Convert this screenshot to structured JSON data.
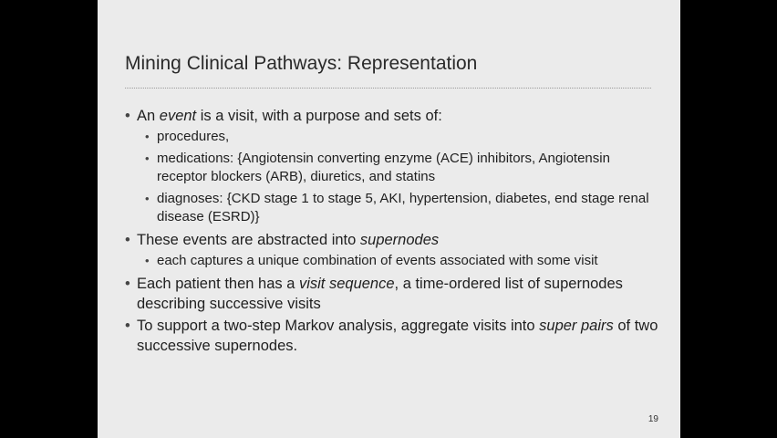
{
  "title": "Mining Clinical Pathways: Representation",
  "bullets": {
    "b1": {
      "pre": "An ",
      "em": "event",
      "post": " is a visit, with a purpose and sets of:",
      "subs": {
        "s1": "procedures,",
        "s2": "medications: {Angiotensin converting enzyme (ACE) inhibitors, Angiotensin receptor blockers (ARB), diuretics, and statins",
        "s3": "diagnoses: {CKD stage 1 to stage 5, AKI, hypertension, diabetes, end stage renal disease (ESRD)}"
      }
    },
    "b2": {
      "pre": "These events are abstracted into ",
      "em": "supernodes",
      "post": "",
      "subs": {
        "s1": "each captures a unique combination of events associated with some visit"
      }
    },
    "b3": {
      "pre": "Each patient then has a ",
      "em": "visit sequence",
      "post": ", a time-ordered list of supernodes describing successive visits"
    },
    "b4": {
      "pre": "To support a two-step Markov analysis, aggregate visits into ",
      "em": "super pairs",
      "post": " of two successive supernodes."
    }
  },
  "page_number": "19",
  "colors": {
    "background": "#000000",
    "slide": "#ebebeb",
    "text": "#1f1f1f"
  }
}
